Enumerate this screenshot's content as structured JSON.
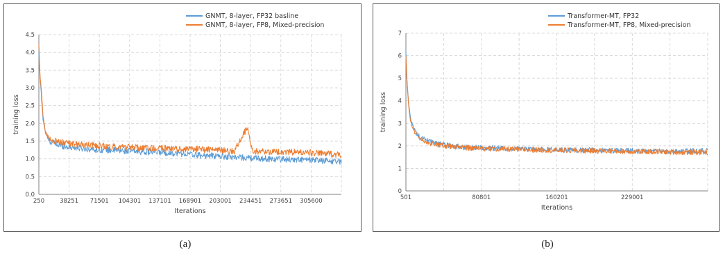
{
  "colors": {
    "blue": "#5b9bd5",
    "orange": "#ed7d31",
    "grid": "#d0d0d0",
    "axis": "#808080"
  },
  "captions": {
    "a": "(a)",
    "b": "(b)"
  },
  "chart_data": [
    {
      "type": "line",
      "title": "",
      "xlabel": "Iterations",
      "ylabel": "training loss",
      "ylim": [
        0,
        4.5
      ],
      "yticks": [
        "0.0",
        "0.5",
        "1.0",
        "1.5",
        "2.0",
        "2.5",
        "3.0",
        "3.5",
        "4.0",
        "4.5"
      ],
      "xticks": [
        "250",
        "38251",
        "71501",
        "104301",
        "137101",
        "168901",
        "203001",
        "234451",
        "273651",
        "305600"
      ],
      "xlim": [
        250,
        340000
      ],
      "grid": true,
      "legend_position": "top-right",
      "series": [
        {
          "name": "GNMT, 8-layer, FP32 basline",
          "color": "#5b9bd5",
          "noise": 0.09,
          "x": [
            250,
            1500,
            3000,
            5000,
            8000,
            12000,
            16000,
            20000,
            30000,
            45000,
            60000,
            80000,
            100000,
            120000,
            140000,
            160000,
            180000,
            200000,
            220000,
            240000,
            260000,
            280000,
            300000,
            320000,
            340000
          ],
          "y": [
            4.0,
            3.3,
            2.8,
            2.1,
            1.7,
            1.5,
            1.45,
            1.4,
            1.35,
            1.3,
            1.27,
            1.25,
            1.22,
            1.2,
            1.18,
            1.15,
            1.1,
            1.08,
            1.05,
            1.02,
            1.0,
            0.99,
            0.97,
            0.95,
            0.93
          ]
        },
        {
          "name": "GNMT, 8-layer, FP8, Mixed-precision",
          "color": "#ed7d31",
          "noise": 0.09,
          "x": [
            250,
            1500,
            3000,
            5000,
            8000,
            12000,
            16000,
            20000,
            30000,
            45000,
            60000,
            80000,
            100000,
            120000,
            140000,
            160000,
            180000,
            200000,
            220000,
            234451,
            240000,
            260000,
            280000,
            300000,
            320000,
            340000
          ],
          "y": [
            4.2,
            3.4,
            2.9,
            2.2,
            1.75,
            1.55,
            1.5,
            1.5,
            1.45,
            1.4,
            1.38,
            1.35,
            1.33,
            1.3,
            1.3,
            1.28,
            1.27,
            1.25,
            1.22,
            1.9,
            1.22,
            1.2,
            1.2,
            1.18,
            1.15,
            1.12
          ]
        }
      ]
    },
    {
      "type": "line",
      "title": "",
      "xlabel": "Iterations",
      "ylabel": "training loss",
      "ylim": [
        0,
        7
      ],
      "yticks": [
        "0",
        "1",
        "2",
        "3",
        "4",
        "5",
        "6",
        "7"
      ],
      "xticks": [
        "501",
        "80801",
        "160201",
        "229001"
      ],
      "xlim": [
        501,
        300000
      ],
      "grid": true,
      "legend_position": "top-right",
      "series": [
        {
          "name": "Transformer-MT, FP32",
          "color": "#5b9bd5",
          "noise": 0.12,
          "x": [
            501,
            1500,
            3000,
            5000,
            8000,
            12000,
            16000,
            20000,
            30000,
            45000,
            60000,
            80000,
            100000,
            130000,
            160000,
            190000,
            220000,
            250000,
            280000,
            300000
          ],
          "y": [
            6.2,
            5.0,
            4.0,
            3.2,
            2.8,
            2.5,
            2.35,
            2.25,
            2.1,
            2.0,
            1.95,
            1.9,
            1.88,
            1.85,
            1.82,
            1.8,
            1.78,
            1.77,
            1.77,
            1.78
          ]
        },
        {
          "name": "Transformer-MT, FP8, Mixed-precision",
          "color": "#ed7d31",
          "noise": 0.12,
          "x": [
            501,
            1500,
            3000,
            5000,
            8000,
            12000,
            16000,
            20000,
            30000,
            45000,
            60000,
            80000,
            100000,
            130000,
            160000,
            190000,
            220000,
            250000,
            280000,
            300000
          ],
          "y": [
            6.0,
            4.9,
            3.9,
            3.1,
            2.7,
            2.45,
            2.3,
            2.2,
            2.05,
            1.97,
            1.92,
            1.88,
            1.85,
            1.82,
            1.8,
            1.78,
            1.76,
            1.74,
            1.72,
            1.72
          ]
        }
      ]
    }
  ]
}
